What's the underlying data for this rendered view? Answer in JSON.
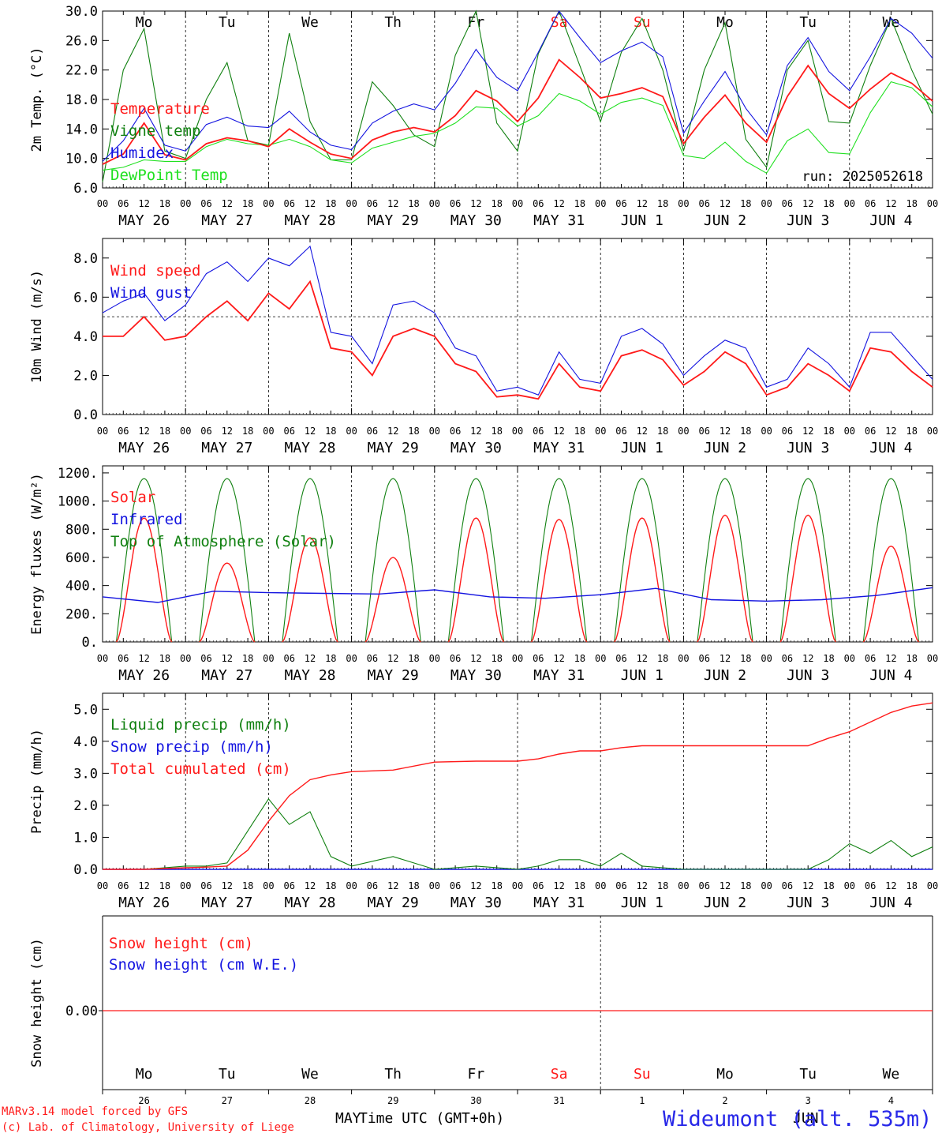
{
  "footer": {
    "credit1": "MARv3.14 model forced by GFS",
    "credit2": "(c) Lab. of Climatology, University of Liege",
    "xlabel": "Time UTC (GMT+0h)",
    "station": "Wideumont (alt. 535m)",
    "month_left": "MAY",
    "month_right": "JUN"
  },
  "colors": {
    "red": "#ff1a1a",
    "blue": "#1414e0",
    "green": "#108010",
    "lightgreen": "#20e020",
    "axis": "#000000"
  },
  "timeline": {
    "hour_ticks": [
      "00",
      "06",
      "12",
      "18"
    ],
    "dates": [
      "MAY 26",
      "MAY 27",
      "MAY 28",
      "MAY 29",
      "MAY 30",
      "MAY 31",
      "JUN  1",
      "JUN  2",
      "JUN  3",
      "JUN  4"
    ],
    "weekdays": [
      "Mo",
      "Tu",
      "We",
      "Th",
      "Fr",
      "Sa",
      "Su",
      "Mo",
      "Tu",
      "We"
    ],
    "weekday_colors": [
      "#000000",
      "#000000",
      "#000000",
      "#000000",
      "#000000",
      "#ff1a1a",
      "#ff1a1a",
      "#000000",
      "#000000",
      "#000000"
    ],
    "day_numbers": [
      "26",
      "27",
      "28",
      "29",
      "30",
      "31",
      "1",
      "2",
      "3",
      "4"
    ]
  },
  "chart_data": [
    {
      "type": "line",
      "ylabel": "2m Temp. (°C)",
      "ylim": [
        6,
        30
      ],
      "yticks": [
        "6.0",
        "10.0",
        "14.0",
        "18.0",
        "22.0",
        "26.0",
        "30.0"
      ],
      "annotation": "run: 2025052618",
      "x_hours": [
        0,
        6,
        12,
        18,
        24,
        30,
        36,
        42,
        48,
        54,
        60,
        66,
        72,
        78,
        84,
        90,
        96,
        102,
        108,
        114,
        120,
        126,
        132,
        138,
        144,
        150,
        156,
        162,
        168,
        174,
        180,
        186,
        192,
        198,
        204,
        210,
        216,
        222,
        228,
        234,
        240
      ],
      "series": [
        {
          "name": "Temperature",
          "color": "#ff1a1a",
          "values": [
            9.2,
            10.6,
            14.8,
            10.5,
            9.8,
            12.0,
            12.8,
            12.4,
            11.6,
            14.0,
            12.2,
            10.6,
            10.0,
            12.5,
            13.6,
            14.2,
            13.6,
            15.8,
            19.2,
            17.8,
            15.0,
            18.2,
            23.4,
            21.0,
            18.2,
            18.8,
            19.6,
            18.4,
            12.0,
            15.6,
            18.6,
            14.8,
            12.2,
            18.4,
            22.6,
            18.8,
            16.8,
            19.4,
            21.6,
            20.2,
            17.8
          ]
        },
        {
          "name": "Vigne temp",
          "color": "#108010",
          "values": [
            6.8,
            22.0,
            27.6,
            11.0,
            10.0,
            18.0,
            23.0,
            12.4,
            11.8,
            27.0,
            15.0,
            9.8,
            9.8,
            20.4,
            17.2,
            13.2,
            11.6,
            24.0,
            30.0,
            14.8,
            11.0,
            24.2,
            33.0,
            22.6,
            15.0,
            24.4,
            29.0,
            22.0,
            11.0,
            22.0,
            28.4,
            12.6,
            8.8,
            22.0,
            26.0,
            15.0,
            14.8,
            22.6,
            29.0,
            22.0,
            16.0
          ]
        },
        {
          "name": "Humidex",
          "color": "#1414e0",
          "values": [
            9.6,
            12.4,
            16.8,
            11.8,
            11.0,
            14.6,
            15.6,
            14.4,
            14.2,
            16.4,
            13.6,
            11.8,
            11.2,
            14.8,
            16.4,
            17.4,
            16.6,
            20.2,
            24.8,
            21.0,
            19.2,
            24.4,
            30.4,
            26.4,
            23.0,
            24.6,
            25.8,
            23.8,
            13.4,
            17.8,
            21.8,
            16.8,
            13.2,
            22.6,
            26.4,
            21.8,
            19.2,
            23.8,
            29.0,
            27.0,
            23.6
          ]
        },
        {
          "name": "DewPoint Temp",
          "color": "#20e020",
          "values": [
            8.4,
            8.8,
            9.8,
            9.6,
            9.6,
            11.6,
            12.6,
            12.0,
            11.8,
            12.6,
            11.6,
            9.8,
            9.4,
            11.4,
            12.2,
            13.0,
            13.4,
            14.8,
            17.0,
            16.8,
            14.4,
            15.8,
            18.8,
            17.8,
            16.0,
            17.6,
            18.2,
            17.2,
            10.4,
            10.0,
            12.2,
            9.6,
            8.0,
            12.4,
            14.0,
            10.8,
            10.6,
            16.2,
            20.4,
            19.6,
            17.0
          ]
        }
      ]
    },
    {
      "type": "line",
      "ylabel": "10m Wind (m/s)",
      "ylim": [
        0,
        9
      ],
      "yticks": [
        "0.0",
        "2.0",
        "4.0",
        "6.0",
        "8.0"
      ],
      "ref_line": 5.0,
      "x_hours": [
        0,
        6,
        12,
        18,
        24,
        30,
        36,
        42,
        48,
        54,
        60,
        66,
        72,
        78,
        84,
        90,
        96,
        102,
        108,
        114,
        120,
        126,
        132,
        138,
        144,
        150,
        156,
        162,
        168,
        174,
        180,
        186,
        192,
        198,
        204,
        210,
        216,
        222,
        228,
        234,
        240
      ],
      "series": [
        {
          "name": "Wind speed",
          "color": "#ff1a1a",
          "values": [
            4.0,
            4.0,
            5.0,
            3.8,
            4.0,
            5.0,
            5.8,
            4.8,
            6.2,
            5.4,
            6.8,
            3.4,
            3.2,
            2.0,
            4.0,
            4.4,
            4.0,
            2.6,
            2.2,
            0.9,
            1.0,
            0.8,
            2.6,
            1.4,
            1.2,
            3.0,
            3.3,
            2.8,
            1.5,
            2.2,
            3.2,
            2.6,
            1.0,
            1.4,
            2.6,
            2.0,
            1.2,
            3.4,
            3.2,
            2.2,
            1.4
          ]
        },
        {
          "name": "Wind gust",
          "color": "#1414e0",
          "values": [
            5.2,
            5.8,
            6.2,
            4.8,
            5.6,
            7.2,
            7.8,
            6.8,
            8.0,
            7.6,
            8.6,
            4.2,
            4.0,
            2.6,
            5.6,
            5.8,
            5.2,
            3.4,
            3.0,
            1.2,
            1.4,
            1.0,
            3.2,
            1.8,
            1.6,
            4.0,
            4.4,
            3.6,
            2.0,
            3.0,
            3.8,
            3.4,
            1.4,
            1.8,
            3.4,
            2.6,
            1.4,
            4.2,
            4.2,
            3.0,
            1.8
          ]
        }
      ]
    },
    {
      "type": "line",
      "ylabel": "Energy fluxes (W/m²)",
      "ylim": [
        0,
        1250
      ],
      "yticks": [
        "0.",
        "200.",
        "400.",
        "600.",
        "800.",
        "1000.",
        "1200."
      ],
      "series": [
        {
          "name": "Solar",
          "color": "#ff1a1a",
          "peaks": [
            880,
            560,
            740,
            600,
            880,
            870,
            880,
            900,
            900,
            680
          ]
        },
        {
          "name": "Infrared",
          "color": "#1414e0",
          "values": [
            320,
            280,
            360,
            350,
            345,
            340,
            370,
            320,
            310,
            335,
            380,
            300,
            290,
            300,
            330,
            385
          ]
        },
        {
          "name": "Top of Atmosphere (Solar)",
          "color": "#108010",
          "peak": 1160
        }
      ]
    },
    {
      "type": "line",
      "ylabel": "Precip (mm/h)",
      "ylim": [
        0,
        5.5
      ],
      "yticks": [
        "0.0",
        "1.0",
        "2.0",
        "3.0",
        "4.0",
        "5.0"
      ],
      "x_hours": [
        0,
        12,
        24,
        30,
        36,
        42,
        48,
        54,
        60,
        66,
        72,
        84,
        96,
        108,
        120,
        126,
        132,
        138,
        144,
        150,
        156,
        168,
        180,
        192,
        204,
        210,
        216,
        222,
        228,
        234,
        240
      ],
      "series": [
        {
          "name": "Liquid precip (mm/h)",
          "color": "#108010",
          "values": [
            0,
            0,
            0.1,
            0.1,
            0.2,
            1.2,
            2.2,
            1.4,
            1.8,
            0.4,
            0.1,
            0.4,
            0.0,
            0.1,
            0.0,
            0.1,
            0.3,
            0.3,
            0.1,
            0.5,
            0.1,
            0.0,
            0.0,
            0.0,
            0.0,
            0.3,
            0.8,
            0.5,
            0.9,
            0.4,
            0.7
          ]
        },
        {
          "name": "Snow precip (mm/h)",
          "color": "#1414e0",
          "values": [
            0,
            0,
            0,
            0,
            0,
            0,
            0,
            0,
            0,
            0,
            0,
            0,
            0,
            0,
            0,
            0,
            0,
            0,
            0,
            0,
            0,
            0,
            0,
            0,
            0,
            0,
            0,
            0,
            0,
            0,
            0
          ]
        },
        {
          "name": "Total cumulated (cm)",
          "color": "#ff1a1a",
          "values": [
            0,
            0,
            0.05,
            0.07,
            0.1,
            0.6,
            1.5,
            2.3,
            2.8,
            2.95,
            3.05,
            3.1,
            3.35,
            3.38,
            3.38,
            3.45,
            3.6,
            3.7,
            3.7,
            3.8,
            3.86,
            3.86,
            3.86,
            3.86,
            3.86,
            4.1,
            4.3,
            4.6,
            4.9,
            5.1,
            5.2
          ]
        }
      ]
    },
    {
      "type": "line",
      "ylabel": "Snow height (cm)",
      "yticks": [
        "0.00"
      ],
      "series": [
        {
          "name": "Snow height (cm)",
          "color": "#ff1a1a",
          "values": [
            0,
            0
          ]
        },
        {
          "name": "Snow height (cm W.E.)",
          "color": "#1414e0",
          "values": [
            0,
            0
          ]
        }
      ]
    }
  ]
}
